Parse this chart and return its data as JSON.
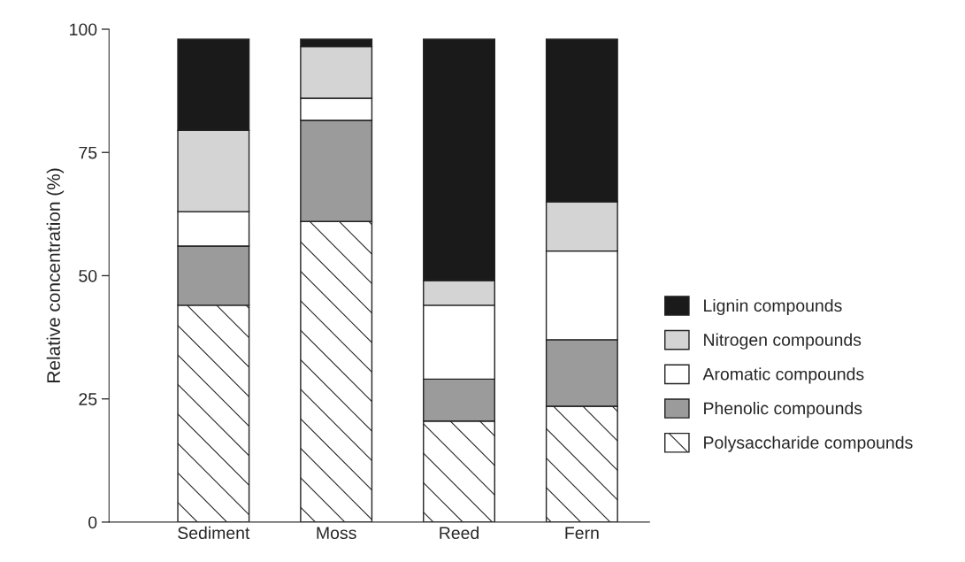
{
  "chart_data": {
    "type": "bar",
    "stacked": true,
    "ylabel": "Relative concentration (%)",
    "categories": [
      "Sediment",
      "Moss",
      "Reed",
      "Fern"
    ],
    "series": [
      {
        "name": "Polysaccharide compounds",
        "color": "#ffffff",
        "values": [
          44,
          61,
          20.5,
          23.5
        ]
      },
      {
        "name": "Phenolic compounds",
        "color": "#9a9b9a",
        "values": [
          12,
          20.5,
          8.5,
          13.5
        ]
      },
      {
        "name": "Aromatic compounds",
        "color": "#ffffff",
        "values": [
          7,
          4.5,
          15,
          18
        ]
      },
      {
        "name": "Nitrogen compounds",
        "color": "#d4d4d4",
        "values": [
          16.5,
          10.5,
          5,
          10
        ]
      },
      {
        "name": "Lignin compounds",
        "color": "#1a1a1a",
        "values": [
          18.5,
          1.5,
          49,
          33
        ]
      }
    ],
    "ylim": [
      0,
      100
    ],
    "yticks": [
      0,
      25,
      50,
      75,
      100
    ],
    "grid": false,
    "legend": "right"
  }
}
